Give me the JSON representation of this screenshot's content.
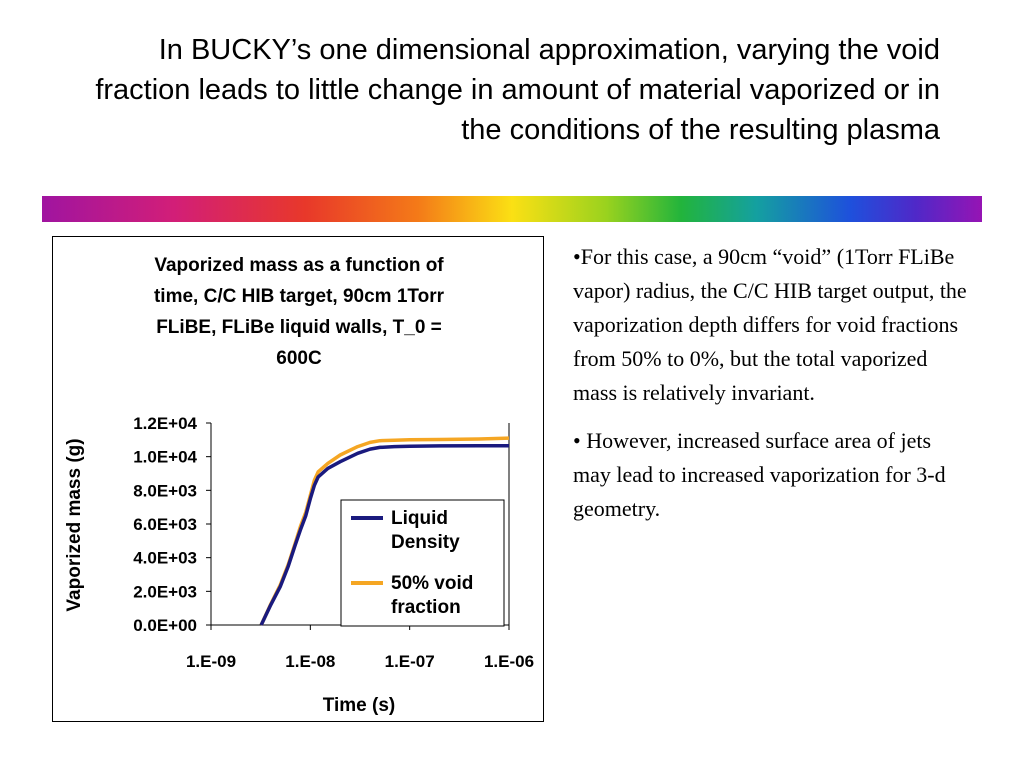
{
  "slide": {
    "title": "In BUCKY’s one dimensional approximation, varying the void fraction leads to little change in amount of material vaporized or in the conditions of the resulting plasma",
    "bullets": [
      "•For this case, a 90cm “void” (1Torr FLiBe vapor) radius, the C/C HIB target output, the vaporization depth differs for void fractions from 50% to 0%, but the total vaporized mass is relatively invariant.",
      "• However, increased surface area of jets may lead to increased vaporization for 3-d geometry."
    ]
  },
  "colors": {
    "liquid_density": "#1a1a7e",
    "void_50": "#f5a623"
  },
  "chart_data": {
    "type": "line",
    "title": "Vaporized mass as a function of time, C/C HIB target, 90cm 1Torr FLiBE, FLiBe liquid walls, T_0 = 600C",
    "xlabel": "Time (s)",
    "ylabel": "Vaporized mass (g)",
    "x_scale": "log",
    "xlim": [
      1e-09,
      1e-06
    ],
    "ylim": [
      0,
      12000
    ],
    "x_ticks": [
      "1.E-09",
      "1.E-08",
      "1.E-07",
      "1.E-06"
    ],
    "y_ticks": [
      "0.0E+00",
      "2.0E+03",
      "4.0E+03",
      "6.0E+03",
      "8.0E+03",
      "1.0E+04",
      "1.2E+04"
    ],
    "legend_position": "right",
    "series": [
      {
        "name": "Liquid Density",
        "color": "#1a1a7e",
        "x": [
          3.2e-09,
          4e-09,
          5e-09,
          6e-09,
          7e-09,
          8e-09,
          9e-09,
          1e-08,
          1.1e-08,
          1.2e-08,
          1.5e-08,
          2e-08,
          3e-08,
          4e-08,
          5e-08,
          7e-08,
          1e-07,
          2e-07,
          5e-07,
          1e-06
        ],
        "y": [
          0,
          1200,
          2300,
          3500,
          4700,
          5700,
          6500,
          7500,
          8300,
          8800,
          9300,
          9700,
          10200,
          10450,
          10550,
          10600,
          10620,
          10640,
          10650,
          10650
        ]
      },
      {
        "name": "50% void fraction",
        "color": "#f5a623",
        "x": [
          3.2e-09,
          4e-09,
          5e-09,
          6e-09,
          7e-09,
          8e-09,
          9e-09,
          1e-08,
          1.1e-08,
          1.2e-08,
          1.5e-08,
          2e-08,
          3e-08,
          4e-08,
          5e-08,
          7e-08,
          1e-07,
          2e-07,
          5e-07,
          1e-06
        ],
        "y": [
          0,
          1250,
          2400,
          3600,
          4800,
          5900,
          6700,
          7700,
          8600,
          9100,
          9600,
          10100,
          10600,
          10850,
          10950,
          10980,
          11000,
          11020,
          11050,
          11100
        ]
      }
    ]
  }
}
